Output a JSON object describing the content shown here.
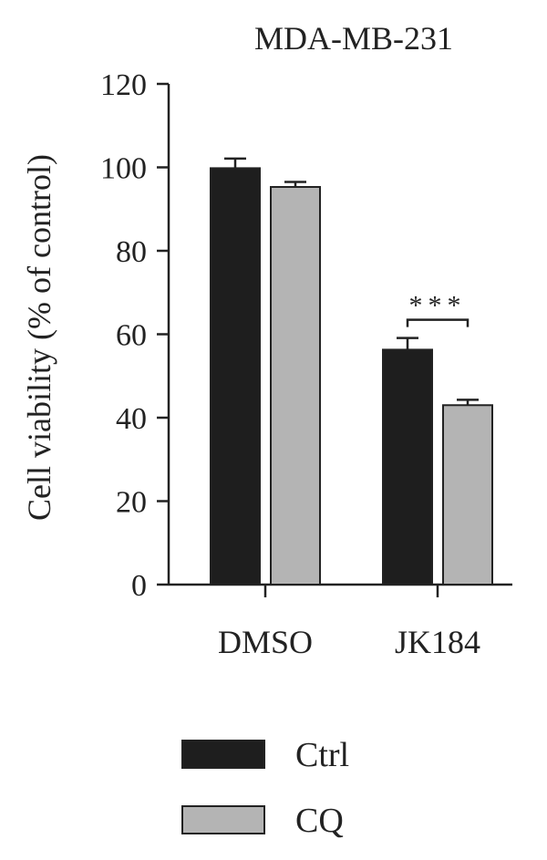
{
  "chart_data": {
    "type": "bar",
    "title": "MDA-MB-231",
    "xlabel": "",
    "ylabel": "Cell viability (% of control)",
    "ylim": [
      0,
      120
    ],
    "yticks": [
      0,
      20,
      40,
      60,
      80,
      100,
      120
    ],
    "ytick_labels": [
      "0",
      "20",
      "40",
      "60",
      "80",
      "100",
      "120"
    ],
    "categories": [
      "DMSO",
      "JK184"
    ],
    "series": [
      {
        "name": "Ctrl",
        "color": "#1e1e1e",
        "values": [
          99.8,
          56.3
        ],
        "errors": [
          2.3,
          2.8
        ]
      },
      {
        "name": "CQ",
        "color": "#b4b4b4",
        "values": [
          95.3,
          43.0
        ],
        "errors": [
          1.2,
          1.3
        ]
      }
    ],
    "annotations": [
      {
        "text": "***",
        "category": "JK184",
        "between": [
          "Ctrl",
          "CQ"
        ]
      }
    ],
    "legend_position": "bottom",
    "grid": false
  }
}
